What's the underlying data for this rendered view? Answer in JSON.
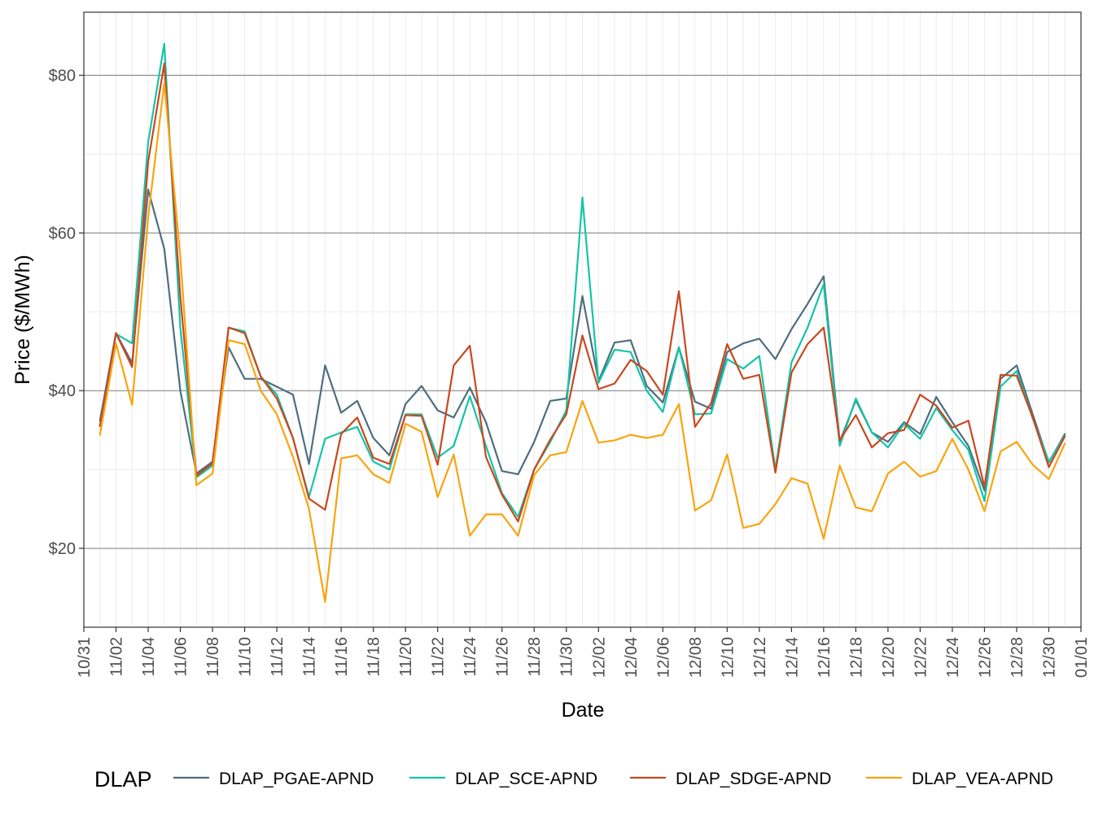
{
  "chart_data": {
    "type": "line",
    "title": "",
    "xlabel": "Date",
    "ylabel": "Price ($/MWh)",
    "x_start": "10/31",
    "x_end": "01/01",
    "x_ticks": [
      "10/31",
      "11/02",
      "11/04",
      "11/06",
      "11/08",
      "11/10",
      "11/12",
      "11/14",
      "11/16",
      "11/18",
      "11/20",
      "11/22",
      "11/24",
      "11/26",
      "11/28",
      "11/30",
      "12/02",
      "12/04",
      "12/06",
      "12/08",
      "12/10",
      "12/12",
      "12/14",
      "12/16",
      "12/18",
      "12/20",
      "12/22",
      "12/24",
      "12/26",
      "12/28",
      "12/30",
      "01/01"
    ],
    "x": [
      "11/01",
      "11/02",
      "11/03",
      "11/04",
      "11/05",
      "11/06",
      "11/07",
      "11/08",
      "11/09",
      "11/10",
      "11/11",
      "11/12",
      "11/13",
      "11/14",
      "11/15",
      "11/16",
      "11/17",
      "11/18",
      "11/19",
      "11/20",
      "11/21",
      "11/22",
      "11/23",
      "11/24",
      "11/25",
      "11/26",
      "11/27",
      "11/28",
      "11/29",
      "11/30",
      "12/01",
      "12/02",
      "12/03",
      "12/04",
      "12/05",
      "12/06",
      "12/07",
      "12/08",
      "12/09",
      "12/10",
      "12/11",
      "12/12",
      "12/13",
      "12/14",
      "12/15",
      "12/16",
      "12/17",
      "12/18",
      "12/19",
      "12/20",
      "12/21",
      "12/22",
      "12/23",
      "12/24",
      "12/25",
      "12/26",
      "12/27",
      "12/28",
      "12/29",
      "12/30",
      "12/31"
    ],
    "y_ticks": [
      20,
      40,
      60,
      80
    ],
    "y_tick_labels": [
      "$20",
      "$40",
      "$60",
      "$80"
    ],
    "ylim": [
      10,
      88
    ],
    "grid": true,
    "legend_title": "DLAP",
    "legend_position": "bottom",
    "series": [
      {
        "name": "DLAP_PGAE-APND",
        "color": "#4e6e80",
        "values": [
          36.2,
          47.3,
          43.5,
          65.5,
          58.0,
          40.0,
          29.5,
          31.0,
          45.5,
          41.5,
          41.5,
          40.5,
          39.5,
          30.7,
          43.2,
          37.2,
          38.7,
          34.0,
          31.8,
          38.3,
          40.6,
          37.5,
          36.6,
          40.4,
          36.0,
          29.8,
          29.4,
          33.5,
          38.7,
          39.0,
          52.0,
          41.2,
          46.1,
          46.4,
          40.6,
          38.5,
          45.5,
          38.6,
          37.7,
          44.9,
          46.0,
          46.6,
          44.0,
          47.8,
          51.0,
          54.5,
          33.5,
          38.8,
          34.7,
          33.5,
          36.0,
          34.5,
          39.2,
          36.0,
          33.0,
          27.3,
          41.5,
          43.2,
          37.0,
          30.9,
          34.5
        ]
      },
      {
        "name": "DLAP_SCE-APND",
        "color": "#14c4a8",
        "values": [
          35.5,
          47.2,
          46.0,
          71.5,
          84.0,
          48.0,
          29.0,
          30.5,
          48.0,
          47.5,
          41.8,
          39.5,
          34.0,
          26.5,
          33.9,
          34.7,
          35.4,
          31.0,
          30.0,
          37.0,
          37.0,
          31.5,
          33.0,
          39.3,
          33.0,
          27.0,
          24.0,
          30.0,
          33.5,
          37.5,
          64.5,
          41.0,
          45.2,
          44.9,
          40.0,
          37.3,
          45.5,
          37.0,
          37.1,
          44.0,
          42.8,
          44.4,
          30.0,
          43.6,
          48.0,
          53.5,
          33.0,
          39.0,
          34.7,
          32.8,
          35.8,
          33.9,
          37.8,
          35.0,
          32.5,
          26.0,
          40.5,
          42.5,
          36.5,
          31.0,
          34.3
        ]
      },
      {
        "name": "DLAP_SDGE-APND",
        "color": "#c8481f",
        "values": [
          35.5,
          47.3,
          43.0,
          69.0,
          81.5,
          52.0,
          29.2,
          30.8,
          48.0,
          47.3,
          41.8,
          39.0,
          34.0,
          26.3,
          24.9,
          34.5,
          36.6,
          31.5,
          30.7,
          36.9,
          36.8,
          30.6,
          43.2,
          45.7,
          31.6,
          26.8,
          23.4,
          30.0,
          33.8,
          37.0,
          47.0,
          40.2,
          40.9,
          43.9,
          42.5,
          39.5,
          52.6,
          35.4,
          38.4,
          45.9,
          41.5,
          42.0,
          29.6,
          42.3,
          45.9,
          48.0,
          33.7,
          36.9,
          32.8,
          34.6,
          35.0,
          39.5,
          38.1,
          35.3,
          36.2,
          27.8,
          42.0,
          41.9,
          36.6,
          30.3,
          34.2
        ]
      },
      {
        "name": "DLAP_VEA-APND",
        "color": "#f9a40e",
        "values": [
          34.4,
          46.0,
          38.2,
          62.0,
          79.0,
          57.0,
          28.0,
          29.5,
          46.4,
          45.9,
          40.0,
          37.0,
          31.6,
          25.0,
          13.2,
          31.4,
          31.8,
          29.4,
          28.3,
          35.8,
          34.8,
          26.5,
          31.9,
          21.6,
          24.3,
          24.3,
          21.6,
          29.3,
          31.8,
          32.2,
          38.7,
          33.4,
          33.7,
          34.4,
          34.0,
          34.4,
          38.3,
          24.8,
          26.1,
          31.9,
          22.6,
          23.1,
          25.6,
          28.9,
          28.2,
          21.2,
          30.5,
          25.2,
          24.7,
          29.5,
          31.0,
          29.1,
          29.8,
          33.9,
          30.0,
          24.7,
          32.3,
          33.5,
          30.6,
          28.8,
          33.3
        ]
      }
    ]
  }
}
